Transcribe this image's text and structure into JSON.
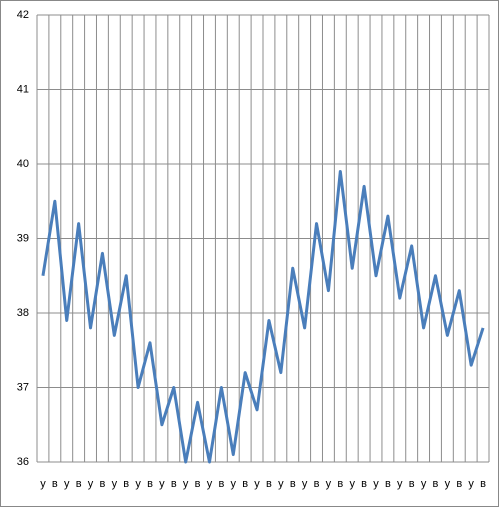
{
  "chart_data": {
    "type": "line",
    "categories": [
      "у",
      "в",
      "у",
      "в",
      "у",
      "в",
      "у",
      "в",
      "у",
      "в",
      "у",
      "в",
      "у",
      "в",
      "у",
      "в",
      "у",
      "в",
      "у",
      "в",
      "у",
      "в",
      "у",
      "в",
      "у",
      "в",
      "у",
      "в",
      "у",
      "в",
      "у",
      "в",
      "у",
      "в",
      "у",
      "в",
      "у",
      "в"
    ],
    "series": [
      {
        "name": "",
        "color": "#4a7ebb",
        "values": [
          38.5,
          39.5,
          37.9,
          39.2,
          37.8,
          38.8,
          37.7,
          38.5,
          37.0,
          37.6,
          36.5,
          37.0,
          36.0,
          36.8,
          36.0,
          37.0,
          36.1,
          37.2,
          36.7,
          37.9,
          37.2,
          38.6,
          37.8,
          39.2,
          38.3,
          39.9,
          38.6,
          39.7,
          38.5,
          39.3,
          38.2,
          38.9,
          37.8,
          38.5,
          37.7,
          38.3,
          37.3,
          37.8
        ]
      }
    ],
    "ylim": [
      36,
      42
    ],
    "yticks": [
      36,
      37,
      38,
      39,
      40,
      41,
      42
    ],
    "grid": true
  }
}
